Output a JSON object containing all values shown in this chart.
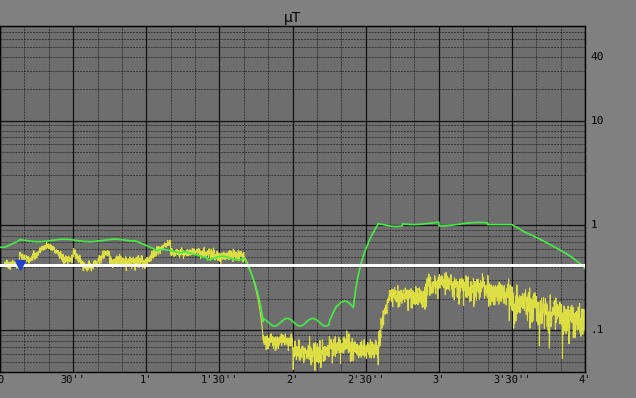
{
  "title": "μT",
  "bg_color": "#808080",
  "plot_bg_color": "#6e6e6e",
  "x_ticks_labels": [
    "0",
    "30''",
    "1'",
    "1'30''",
    "2'",
    "2'30''",
    "3'",
    "3'30''",
    "4'"
  ],
  "x_ticks_pos": [
    0,
    30,
    60,
    90,
    120,
    150,
    180,
    210,
    240
  ],
  "xlim": [
    0,
    240
  ],
  "ylim_log": [
    0.04,
    80
  ],
  "white_line_y": 0.42,
  "marker_x": 8,
  "marker_y": 0.42,
  "green_color": "#44ee44",
  "yellow_color": "#dddd44",
  "white_color": "#ffffff",
  "blue_marker_color": "#2244cc"
}
